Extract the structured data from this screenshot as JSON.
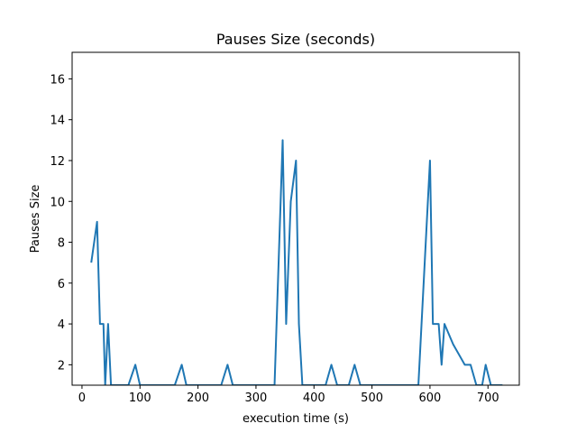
{
  "chart_data": {
    "type": "line",
    "title": "Pauses Size (seconds)",
    "xlabel": "execution time (s)",
    "ylabel": "Pauses Size",
    "xlim": [
      -17,
      754
    ],
    "ylim": [
      1,
      17.3
    ],
    "xticks": [
      0,
      100,
      200,
      300,
      400,
      500,
      600,
      700
    ],
    "yticks": [
      2,
      4,
      6,
      8,
      10,
      12,
      14,
      16
    ],
    "grid": false,
    "color": "#1f77b4",
    "series": [
      {
        "x": [
          16,
          26,
          31,
          37,
          40,
          45,
          50,
          60,
          70,
          80,
          92,
          100,
          110,
          120,
          130,
          140,
          150,
          160,
          172,
          180,
          190,
          200,
          210,
          220,
          230,
          240,
          251,
          260,
          270,
          280,
          290,
          300,
          310,
          320,
          332,
          346,
          352,
          360,
          369,
          374,
          380,
          390,
          400,
          410,
          420,
          430,
          440,
          450,
          460,
          470,
          480,
          490,
          500,
          510,
          520,
          530,
          540,
          550,
          560,
          570,
          580,
          600,
          605,
          615,
          620,
          625,
          640,
          660,
          670,
          680,
          690,
          696,
          705,
          715,
          725
        ],
        "y": [
          7,
          9,
          4,
          4,
          1,
          4,
          1,
          1,
          1,
          1,
          2,
          1,
          1,
          1,
          1,
          1,
          1,
          1,
          2,
          1,
          1,
          1,
          1,
          1,
          1,
          1,
          2,
          1,
          1,
          1,
          1,
          1,
          1,
          1,
          1,
          13,
          4,
          10,
          12,
          4,
          1,
          1,
          1,
          1,
          1,
          2,
          1,
          1,
          1,
          2,
          1,
          1,
          1,
          1,
          1,
          1,
          1,
          1,
          1,
          1,
          1,
          12,
          4,
          4,
          2,
          4,
          3,
          2,
          2,
          1,
          1,
          2,
          1,
          1,
          1
        ]
      }
    ]
  }
}
